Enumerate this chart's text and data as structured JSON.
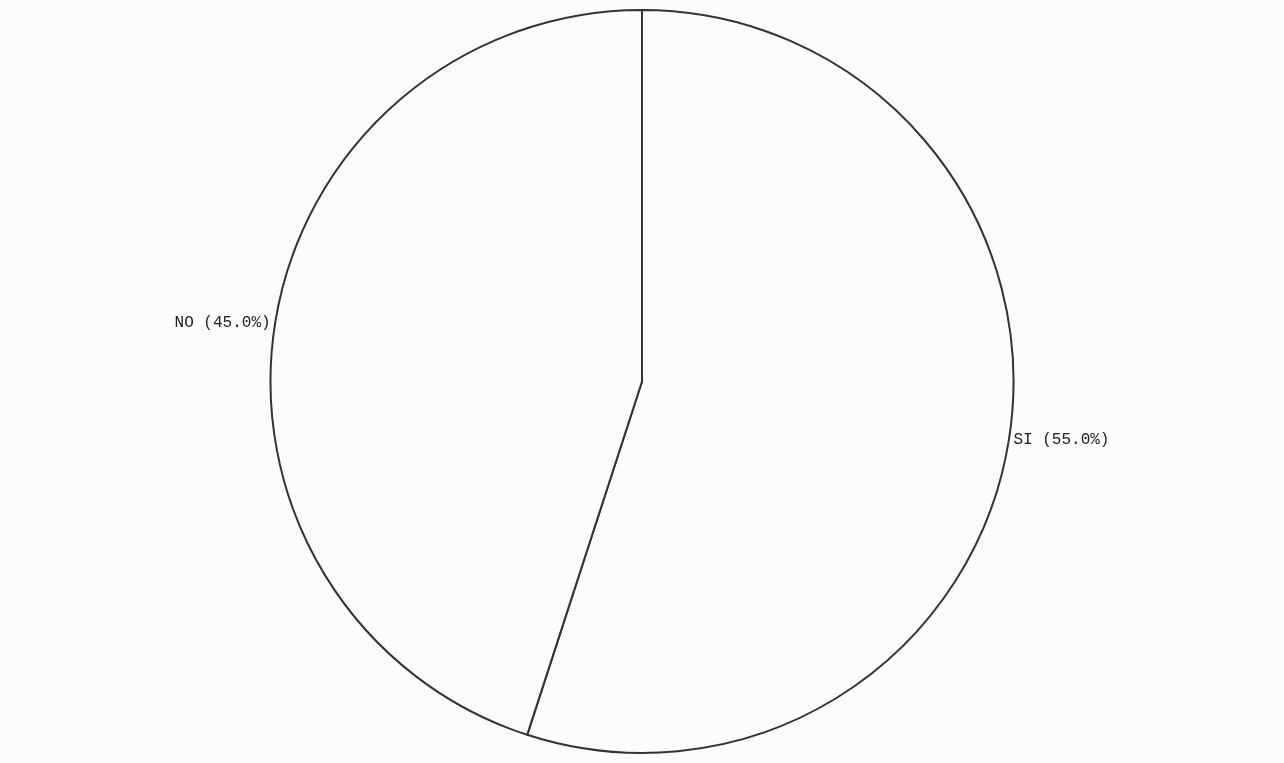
{
  "chart_data": {
    "type": "pie",
    "categories": [
      "SI",
      "NO"
    ],
    "values": [
      55.0,
      45.0
    ],
    "value_labels": [
      "(55.0%)",
      "(45.0%)"
    ],
    "colors": [
      "#fdfcfa",
      "#fdfcfa"
    ],
    "legend": false
  }
}
